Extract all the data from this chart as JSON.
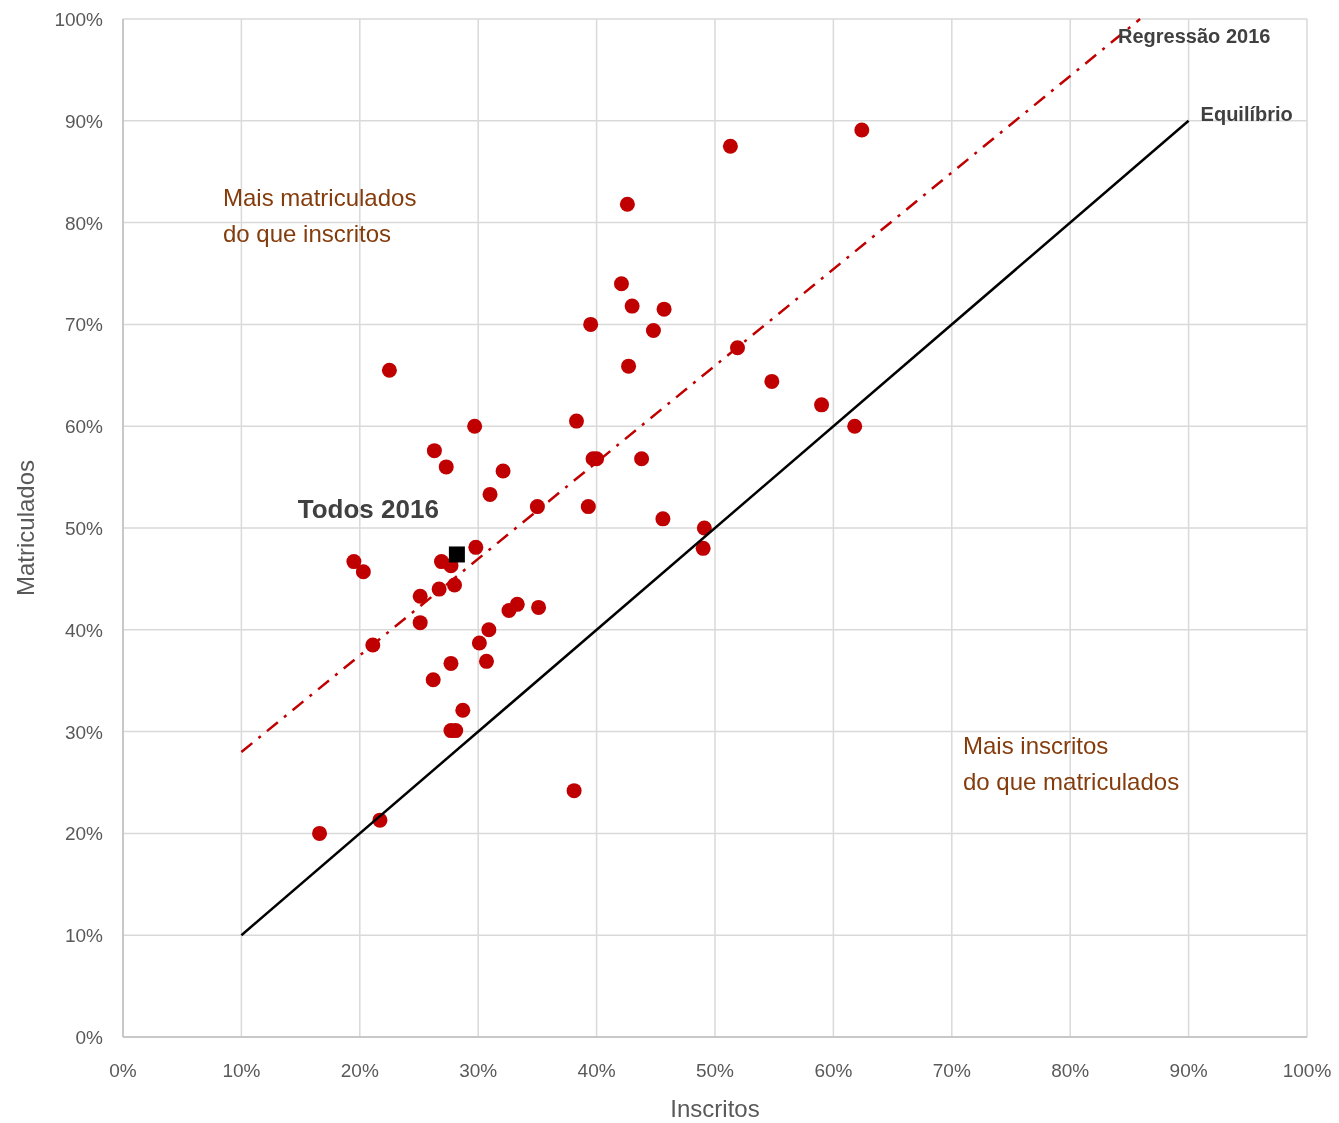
{
  "chart_data": {
    "type": "scatter",
    "xlabel": "Inscritos",
    "ylabel": "Matriculados",
    "xlim": [
      0,
      100
    ],
    "ylim": [
      0,
      100
    ],
    "xticks": [
      {
        "value": 0,
        "label": "0%"
      },
      {
        "value": 10,
        "label": "10%"
      },
      {
        "value": 20,
        "label": "20%"
      },
      {
        "value": 30,
        "label": "30%"
      },
      {
        "value": 40,
        "label": "40%"
      },
      {
        "value": 50,
        "label": "50%"
      },
      {
        "value": 60,
        "label": "60%"
      },
      {
        "value": 70,
        "label": "70%"
      },
      {
        "value": 80,
        "label": "80%"
      },
      {
        "value": 90,
        "label": "90%"
      },
      {
        "value": 100,
        "label": "100%"
      }
    ],
    "yticks": [
      {
        "value": 0,
        "label": "0%"
      },
      {
        "value": 10,
        "label": "10%"
      },
      {
        "value": 20,
        "label": "20%"
      },
      {
        "value": 30,
        "label": "30%"
      },
      {
        "value": 40,
        "label": "40%"
      },
      {
        "value": 50,
        "label": "50%"
      },
      {
        "value": 60,
        "label": "60%"
      },
      {
        "value": 70,
        "label": "70%"
      },
      {
        "value": 80,
        "label": "80%"
      },
      {
        "value": 90,
        "label": "90%"
      },
      {
        "value": 100,
        "label": "100%"
      }
    ],
    "grid": true,
    "series": [
      {
        "color": "#c00000",
        "marker": "circle",
        "x": [
          62.4,
          51.3,
          42.6,
          42.1,
          43.0,
          45.7,
          39.5,
          44.8,
          22.5,
          42.7,
          51.9,
          54.8,
          59.0,
          61.8,
          38.3,
          29.7,
          26.3,
          27.3,
          32.1,
          39.7,
          40.0,
          43.8,
          31.0,
          35.0,
          39.3,
          45.6,
          49.1,
          49.0,
          29.8,
          19.5,
          20.3,
          26.9,
          27.7,
          26.7,
          28.0,
          25.1,
          33.3,
          32.6,
          35.1,
          25.1,
          30.9,
          30.1,
          21.1,
          27.7,
          30.7,
          26.2,
          28.7,
          27.7,
          28.1,
          38.1,
          21.7,
          16.6
        ],
        "values": [
          89.1,
          87.5,
          81.8,
          74.0,
          71.8,
          71.5,
          70.0,
          69.4,
          65.5,
          65.9,
          67.7,
          64.4,
          62.1,
          60.0,
          60.5,
          60.0,
          57.6,
          56.0,
          55.6,
          56.8,
          56.8,
          56.8,
          53.3,
          52.1,
          52.1,
          50.9,
          50.0,
          48.0,
          48.1,
          46.7,
          45.7,
          46.7,
          46.3,
          44.0,
          44.4,
          43.3,
          42.5,
          41.9,
          42.2,
          40.7,
          40.0,
          38.7,
          38.5,
          36.7,
          36.9,
          35.1,
          32.1,
          30.1,
          30.1,
          24.2,
          21.3,
          20.0
        ]
      },
      {
        "name": "Todos 2016",
        "color": "#000000",
        "marker": "square",
        "x": [
          28.2
        ],
        "values": [
          47.4
        ]
      },
      {
        "type": "line",
        "name": "Regressão 2016",
        "color": "#c00000",
        "line_style": "dashed",
        "marker": "none",
        "x": [
          10,
          85.9
        ],
        "values": [
          28.0,
          100
        ]
      },
      {
        "type": "line",
        "name": "Equilíbrio",
        "color": "#000000",
        "line_style": "solid",
        "marker": "none",
        "x": [
          10,
          90
        ],
        "values": [
          10,
          90
        ]
      }
    ],
    "annotations": [
      "Mais matriculados\ndo que inscritos",
      "Mais inscritos\ndo que matriculados"
    ]
  }
}
